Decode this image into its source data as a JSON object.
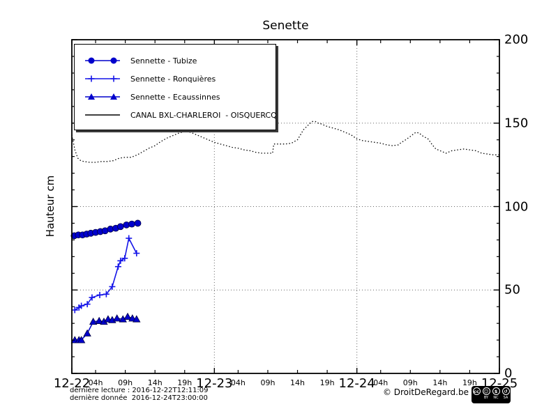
{
  "figure": {
    "title": "Senette",
    "background": "#ffffff"
  },
  "axes": {
    "ylabel": "Hauteur cm",
    "ylim": [
      0,
      200
    ],
    "y_major_ticks": [
      {
        "value": 0,
        "label": "0"
      },
      {
        "value": 50,
        "label": "50"
      },
      {
        "value": 100,
        "label": "100"
      },
      {
        "value": 150,
        "label": "150"
      },
      {
        "value": 200,
        "label": "200"
      }
    ],
    "y_minor_step": 10,
    "xlim_hours": [
      0,
      72
    ],
    "x_major_ticks": [
      {
        "hour": 0,
        "label": "12-22"
      },
      {
        "hour": 24,
        "label": "12-23"
      },
      {
        "hour": 48,
        "label": "12-24"
      },
      {
        "hour": 72,
        "label": "12-25"
      }
    ],
    "x_minor_ticks": [
      {
        "hour": 4,
        "label": "04h"
      },
      {
        "hour": 9,
        "label": "09h"
      },
      {
        "hour": 14,
        "label": "14h"
      },
      {
        "hour": 19,
        "label": "19h"
      },
      {
        "hour": 28,
        "label": "04h"
      },
      {
        "hour": 33,
        "label": "09h"
      },
      {
        "hour": 38,
        "label": "14h"
      },
      {
        "hour": 43,
        "label": "19h"
      },
      {
        "hour": 52,
        "label": "04h"
      },
      {
        "hour": 57,
        "label": "09h"
      },
      {
        "hour": 62,
        "label": "14h"
      },
      {
        "hour": 67,
        "label": "19h"
      }
    ],
    "grid_y_values": [
      50,
      100,
      150
    ],
    "grid_x_hours": [
      24,
      48
    ],
    "grid_color": "#666666",
    "frame_color": "#000000"
  },
  "legend": {
    "items": [
      {
        "label": "Sennette - Tubize",
        "marker": "circle",
        "color": "#0000cc"
      },
      {
        "label": "Sennette - Ronquières",
        "marker": "plus",
        "color": "#1414e8"
      },
      {
        "label": "Sennette - Ecaussinnes",
        "marker": "triangle",
        "color": "#0000cc"
      },
      {
        "label": "CANAL BXL-CHARLEROI  - OISQUERCQ",
        "marker": "line",
        "color": "#000000"
      }
    ]
  },
  "footer": {
    "last_reading": "dernière lecture : 2016-12-22T12:11:09",
    "last_data": "dernière donnée  2016-12-24T23:00:00",
    "copyright": "© DroitDeRegard.be",
    "cc_badge": {
      "icons": [
        {
          "name": "cc-logo-icon",
          "glyph": "cc",
          "label": ""
        },
        {
          "name": "attribution-icon",
          "glyph": "☺",
          "label": "BY"
        },
        {
          "name": "non-commercial-icon",
          "glyph": "$",
          "label": "NC"
        },
        {
          "name": "share-alike-icon",
          "glyph": "↺",
          "label": "SA"
        }
      ]
    }
  },
  "chart_data": {
    "type": "line",
    "title": "Senette",
    "xlabel": "",
    "ylabel": "Hauteur cm",
    "ylim": [
      0,
      200
    ],
    "x_unit": "hours since 2016-12-22T00:00",
    "legend_position": "upper-left",
    "grid": "dotted at y=50,100,150 and x=12-23,12-24",
    "series": [
      {
        "name": "Sennette - Tubize",
        "marker": "circle",
        "linestyle": "solid",
        "color": "#0000cc",
        "x": [
          0.4,
          1.1,
          1.8,
          2.5,
          3.2,
          4.0,
          4.8,
          5.6,
          6.5,
          7.4,
          8.2,
          9.2,
          10.1,
          11.1
        ],
        "values": [
          82.5,
          83,
          83,
          83.5,
          84,
          84.5,
          85,
          85.5,
          86.5,
          87,
          88,
          89,
          89.5,
          90
        ]
      },
      {
        "name": "Sennette - Ronquières",
        "marker": "plus",
        "linestyle": "solid",
        "color": "#1414e8",
        "x": [
          0.5,
          1.2,
          1.6,
          2.6,
          3.4,
          4.7,
          5.8,
          6.8,
          7.8,
          8.2,
          8.9,
          9.6,
          10.9
        ],
        "values": [
          38,
          39.5,
          40.5,
          41.5,
          45.5,
          47,
          47.5,
          52,
          64,
          67.5,
          69,
          81,
          72
        ]
      },
      {
        "name": "Sennette - Ecaussinnes",
        "marker": "triangle",
        "linestyle": "solid",
        "color": "#0000cc",
        "x": [
          0.5,
          1.2,
          1.6,
          2.6,
          3.6,
          4.6,
          5.4,
          6.1,
          6.8,
          7.6,
          8.6,
          9.4,
          10.2,
          10.9
        ],
        "values": [
          20,
          20,
          20,
          24,
          31,
          31.5,
          31,
          32.5,
          32,
          33,
          32.5,
          34,
          33,
          32.5
        ]
      },
      {
        "name": "CANAL BXL-CHARLEROI  - OISQUERCQ",
        "marker": "none",
        "linestyle": "dotted",
        "color": "#000000",
        "x": [
          0,
          0.5,
          1,
          1.5,
          2,
          3,
          4,
          5,
          6,
          7,
          8,
          9,
          10,
          11,
          12,
          13,
          14,
          15,
          16,
          17,
          18,
          19,
          20,
          21,
          22,
          23,
          24,
          25,
          26,
          27,
          28,
          29,
          30,
          31,
          32,
          33,
          33.8,
          34,
          35,
          36,
          37,
          38,
          38.5,
          39,
          40,
          40.5,
          41,
          41.5,
          42,
          43,
          44,
          45,
          46,
          47,
          48,
          49,
          50,
          51,
          52,
          53,
          54,
          55,
          55.5,
          56,
          57,
          57.7,
          58,
          58.5,
          59,
          60,
          60.7,
          61.3,
          62,
          63,
          64,
          65,
          66,
          67,
          68,
          69,
          70,
          71,
          72
        ],
        "values": [
          143,
          134,
          129,
          127.5,
          127,
          126.5,
          126.5,
          127,
          127,
          127.5,
          129,
          129.5,
          129.5,
          131,
          133,
          135,
          136.5,
          139,
          141,
          142.5,
          144,
          145,
          144.5,
          143,
          141.5,
          140,
          138.5,
          137.5,
          136.5,
          135.5,
          135,
          134,
          133.5,
          132.5,
          132,
          132,
          132,
          137.5,
          137.5,
          137.5,
          138,
          140,
          143,
          146,
          149.5,
          151,
          151,
          150,
          149.5,
          148,
          147,
          146,
          144.5,
          143,
          140.5,
          139.5,
          139,
          138.5,
          138,
          137,
          136.5,
          137,
          138.5,
          139.5,
          142,
          144,
          144.5,
          144,
          142.5,
          140.5,
          137,
          134.5,
          133.5,
          132,
          133.5,
          134,
          134.5,
          134,
          133.5,
          132,
          131.5,
          131,
          131
        ]
      }
    ]
  }
}
